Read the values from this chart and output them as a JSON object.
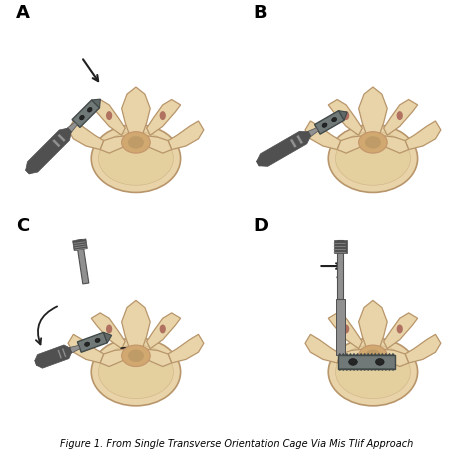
{
  "figure_width": 4.74,
  "figure_height": 4.54,
  "dpi": 100,
  "background_color": "#ffffff",
  "panel_labels": [
    "A",
    "B",
    "C",
    "D"
  ],
  "panel_label_fontsize": 13,
  "panel_label_fontweight": "bold",
  "caption": "Figure 1. From Single Transverse Orientation Cage Via Mis Tlif Approach",
  "caption_fontsize": 7,
  "bone_body_color": "#e8d4a8",
  "bone_edge_color": "#b8956a",
  "bone_inner_color": "#d4b882",
  "bone_dark_color": "#c4956a",
  "canal_color": "#e0c890",
  "red_tissue_color": "#8b3030",
  "instrument_main": "#909090",
  "instrument_dark": "#505050",
  "instrument_light": "#c0c0c0",
  "cage_main": "#707878",
  "cage_dark": "#404848",
  "cage_tip_color": "#606868",
  "arrow_color": "#202020"
}
